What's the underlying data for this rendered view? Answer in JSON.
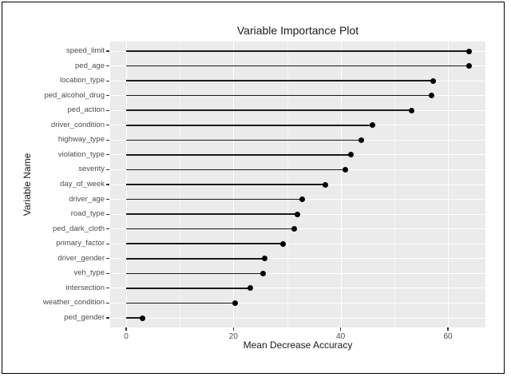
{
  "figure": {
    "border_color": "#000000",
    "background": "#ffffff"
  },
  "chart_data": {
    "type": "scatter",
    "variant": "horizontal-lollipop-dot-plot",
    "title": "Variable Importance Plot",
    "xlabel": "Mean Decrease Accuracy",
    "ylabel": "Variable Name",
    "categories": [
      "speed_limit",
      "ped_age",
      "location_type",
      "ped_alcohol_drug",
      "ped_action",
      "driver_condition",
      "highway_type",
      "violation_type",
      "severity",
      "day_of_week",
      "driver_age",
      "road_type",
      "ped_dark_cloth",
      "primary_factor",
      "driver_gender",
      "veh_type",
      "intersection",
      "weather_condition",
      "ped_gender"
    ],
    "values": [
      64.0,
      63.9,
      57.2,
      56.9,
      53.2,
      46.0,
      43.9,
      41.9,
      40.8,
      37.2,
      32.8,
      32.0,
      31.3,
      29.3,
      25.9,
      25.5,
      23.1,
      20.3,
      3.1
    ],
    "x_ticks": [
      0,
      20,
      40,
      60
    ],
    "x_minor_ticks": [
      10,
      30,
      50
    ],
    "xlim": [
      -3,
      67
    ],
    "grid": "white major and minor gridlines on gray panel",
    "legend": "none",
    "stems_start_at": 0
  },
  "style": {
    "panel_bg": "#EBEBEB",
    "grid_color": "#ffffff",
    "point_color": "#000000",
    "stem_color": "#1a1a1a",
    "tick_label_color": "#4d4d4d",
    "title_color": "#1a1a1a"
  }
}
